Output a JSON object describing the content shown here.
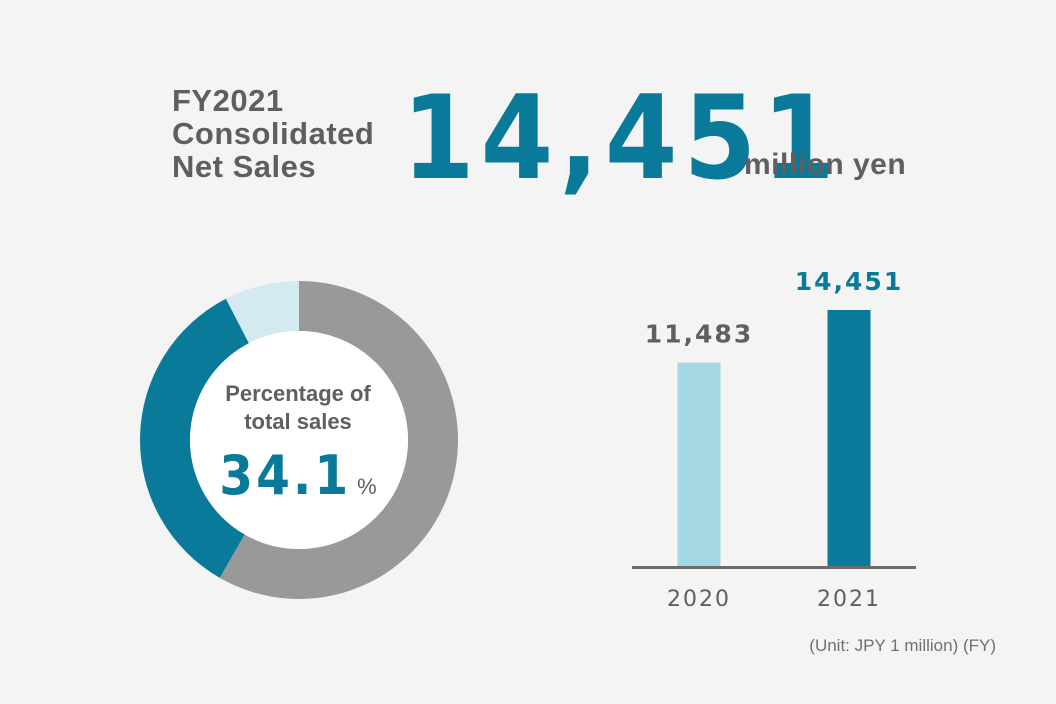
{
  "headline": {
    "label_lines": [
      "FY2021",
      "Consolidated",
      "Net Sales"
    ],
    "value": "14,451",
    "unit": "million yen"
  },
  "donut": {
    "caption_lines": [
      "Percentage of",
      "total sales"
    ],
    "percent": "34.1",
    "percent_symbol": "%"
  },
  "unit_note": "(Unit: JPY 1 million)  (FY)",
  "colors": {
    "accent": "#0a7a9a",
    "light": "#a5d8e5",
    "pale": "#d4eaf1",
    "gray": "#999999",
    "text": "#5f5f5f",
    "axis": "#6b6b6b"
  },
  "chart_data": [
    {
      "type": "pie",
      "variant": "donut",
      "slices": [
        {
          "value": 34.1,
          "color": "#0a7a9a"
        },
        {
          "value": 7.6,
          "color": "#d4eaf1"
        },
        {
          "value": 58.3,
          "color": "#999999"
        }
      ],
      "title": "Percentage of total sales",
      "data_label": "34.1 %"
    },
    {
      "type": "bar",
      "categories": [
        "2020",
        "2021"
      ],
      "values": [
        11483,
        14451
      ],
      "data_labels": [
        "11,483",
        "14,451"
      ],
      "bar_colors": [
        "#a5d8e5",
        "#0a7a9a"
      ],
      "label_colors": [
        "#5f5f5f",
        "#0a7a9a"
      ],
      "ylim": [
        0,
        14451
      ],
      "grid": false,
      "xlabel": "",
      "ylabel": ""
    }
  ]
}
